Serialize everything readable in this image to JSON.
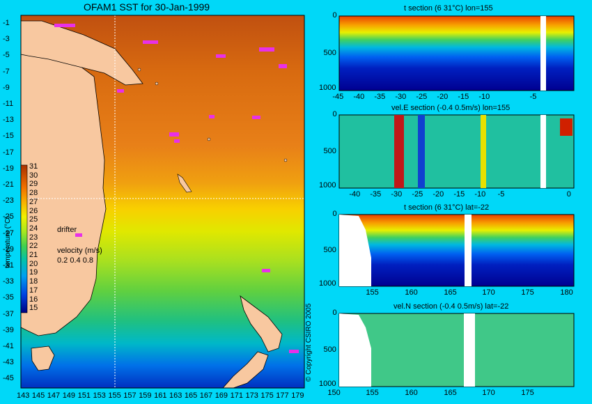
{
  "map": {
    "title": "OFAM1 SST for 30-Jan-1999",
    "lat_ticks": [
      "-1",
      "-3",
      "-5",
      "-7",
      "-9",
      "-11",
      "-13",
      "-15",
      "-17",
      "-19",
      "-21",
      "-23",
      "-25",
      "-27",
      "-29",
      "-31",
      "-33",
      "-35",
      "-37",
      "-39",
      "-41",
      "-43",
      "-45"
    ],
    "lon_ticks": [
      "143",
      "145",
      "147",
      "149",
      "151",
      "153",
      "155",
      "157",
      "159",
      "161",
      "163",
      "165",
      "167",
      "169",
      "171",
      "173",
      "175",
      "177",
      "179"
    ],
    "colorbar_label": "temperature (°C)",
    "colorbar_values": [
      "31",
      "30",
      "29",
      "28",
      "27",
      "26",
      "25",
      "24",
      "23",
      "22",
      "21",
      "20",
      "19",
      "18",
      "17",
      "16",
      "15"
    ],
    "drifter_label": "drifter",
    "velocity_label": "velocity (m/s)",
    "velocity_scale": "0.2 0.4 0.8",
    "copyright": "© Copyright CSIRO 2005",
    "crosshair": {
      "lon": 155,
      "lat": -22
    }
  },
  "panels": [
    {
      "title": "t section (6      31°C) lon=155",
      "x_ticks": [
        "-45",
        "-40",
        "-35",
        "-30",
        "-25",
        "-20",
        "-15",
        "-10",
        "-5"
      ],
      "y_ticks": [
        "0",
        "500",
        "1000"
      ]
    },
    {
      "title": "vel.E section (-0.4      0.5m/s) lon=155",
      "x_ticks": [
        "-40",
        "-35",
        "-30",
        "-25",
        "-20",
        "-15",
        "-10",
        "-5",
        "0"
      ],
      "y_ticks": [
        "0",
        "500",
        "1000"
      ]
    },
    {
      "title": "t section (6      31°C) lat=-22",
      "x_ticks": [
        "155",
        "160",
        "165",
        "170",
        "175",
        "180"
      ],
      "y_ticks": [
        "0",
        "500",
        "1000"
      ]
    },
    {
      "title": "vel.N section (-0.4      0.5m/s) lat=-22",
      "x_ticks": [
        "150",
        "155",
        "160",
        "165",
        "170",
        "175"
      ],
      "y_ticks": [
        "0",
        "500",
        "1000"
      ]
    }
  ],
  "colors": {
    "background": "#00d8f8",
    "land": "#f8c8a0",
    "drifter": "#e830e8",
    "scale": [
      "#000080",
      "#0010c8",
      "#0050f0",
      "#0090f8",
      "#00c8e0",
      "#00b8a0",
      "#10c878",
      "#60d840",
      "#a8e820",
      "#e8f000",
      "#f8d000",
      "#f8a000",
      "#f07800",
      "#e06000",
      "#c85010",
      "#b04000",
      "#983000"
    ]
  },
  "chart_data": {
    "type": "heatmap",
    "title": "OFAM1 SST for 30-Jan-1999",
    "xlabel": "",
    "ylabel": "temperature (°C)",
    "xlim": [
      143,
      180
    ],
    "ylim": [
      -45,
      0
    ],
    "color_range": [
      15,
      31
    ],
    "sst_by_latitude": [
      {
        "lat": -1,
        "sst": 30
      },
      {
        "lat": -5,
        "sst": 30
      },
      {
        "lat": -10,
        "sst": 29
      },
      {
        "lat": -15,
        "sst": 29
      },
      {
        "lat": -20,
        "sst": 28
      },
      {
        "lat": -23,
        "sst": 27
      },
      {
        "lat": -25,
        "sst": 26
      },
      {
        "lat": -28,
        "sst": 25
      },
      {
        "lat": -31,
        "sst": 24
      },
      {
        "lat": -34,
        "sst": 23
      },
      {
        "lat": -37,
        "sst": 21
      },
      {
        "lat": -40,
        "sst": 19
      },
      {
        "lat": -43,
        "sst": 17
      },
      {
        "lat": -45,
        "sst": 16
      }
    ],
    "sections": [
      {
        "name": "t section lon=155",
        "x_range": [
          -45,
          0
        ],
        "depth_range": [
          0,
          1000
        ],
        "value_range": [
          6,
          31
        ]
      },
      {
        "name": "vel.E section lon=155",
        "x_range": [
          -45,
          0
        ],
        "depth_range": [
          0,
          1000
        ],
        "value_range": [
          -0.4,
          0.5
        ]
      },
      {
        "name": "t section lat=-22",
        "x_range": [
          150,
          180
        ],
        "depth_range": [
          0,
          1000
        ],
        "value_range": [
          6,
          31
        ]
      },
      {
        "name": "vel.N section lat=-22",
        "x_range": [
          150,
          180
        ],
        "depth_range": [
          0,
          1000
        ],
        "value_range": [
          -0.4,
          0.5
        ]
      }
    ]
  }
}
